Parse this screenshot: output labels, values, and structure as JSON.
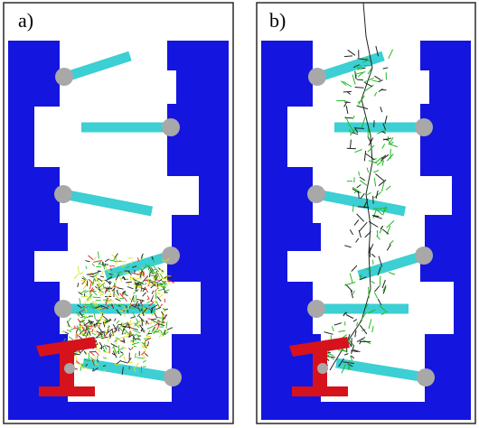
{
  "panels": [
    {
      "label": "a)"
    },
    {
      "label": "b)"
    }
  ],
  "colors": {
    "background": "#ffffff",
    "frame": "#2a2a2a",
    "wall": "#1515e0",
    "bar": "#3ccfd3",
    "pivot": "#a8a8a8",
    "tool": "#d6121c",
    "tree_branch": "#1f2420",
    "tree_leaf_green": "#23b823",
    "tree_leaf_yellow": "#d9e21b",
    "tree_leaf_red": "#e12222"
  }
}
